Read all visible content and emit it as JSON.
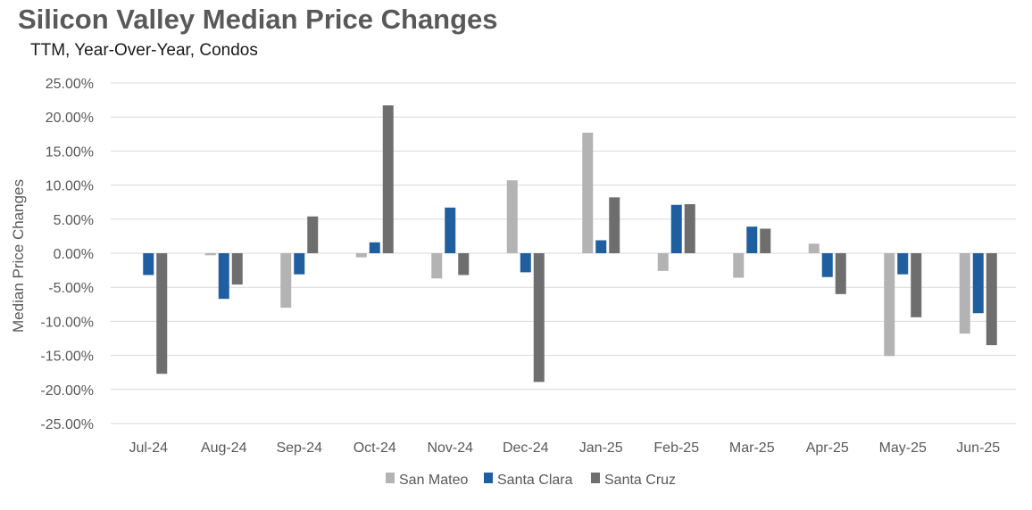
{
  "chart_data": {
    "type": "bar",
    "title": "Silicon Valley Median Price Changes",
    "subtitle": "TTM, Year-Over-Year,  Condos",
    "xlabel": "",
    "ylabel": "Median Price Changes",
    "ylim": [
      -25,
      25
    ],
    "y_tick_step": 5,
    "y_tick_labels": [
      "25.00%",
      "20.00%",
      "15.00%",
      "10.00%",
      "5.00%",
      "0.00%",
      "-5.00%",
      "-10.00%",
      "-15.00%",
      "-20.00%",
      "-25.00%"
    ],
    "grid": true,
    "legend_position": "bottom",
    "categories": [
      "Jul-24",
      "Aug-24",
      "Sep-24",
      "Oct-24",
      "Nov-24",
      "Dec-24",
      "Jan-25",
      "Feb-25",
      "Mar-25",
      "Apr-25",
      "May-25",
      "Jun-25"
    ],
    "series": [
      {
        "name": "San Mateo",
        "color": "#b3b3b3",
        "values": [
          0,
          -0.3,
          -8.0,
          -0.6,
          -3.7,
          10.7,
          17.7,
          -2.6,
          -3.6,
          1.4,
          -15.1,
          -11.8
        ]
      },
      {
        "name": "Santa Clara",
        "color": "#1f5fa0",
        "values": [
          -3.2,
          -6.7,
          -3.1,
          1.6,
          6.7,
          -2.8,
          1.9,
          7.1,
          3.9,
          -3.5,
          -3.1,
          -8.8
        ]
      },
      {
        "name": "Santa Cruz",
        "color": "#6e6e6e",
        "values": [
          -17.7,
          -4.6,
          5.4,
          21.7,
          -3.2,
          -18.9,
          8.2,
          7.2,
          3.6,
          -6.0,
          -9.4,
          -13.5
        ]
      }
    ]
  }
}
